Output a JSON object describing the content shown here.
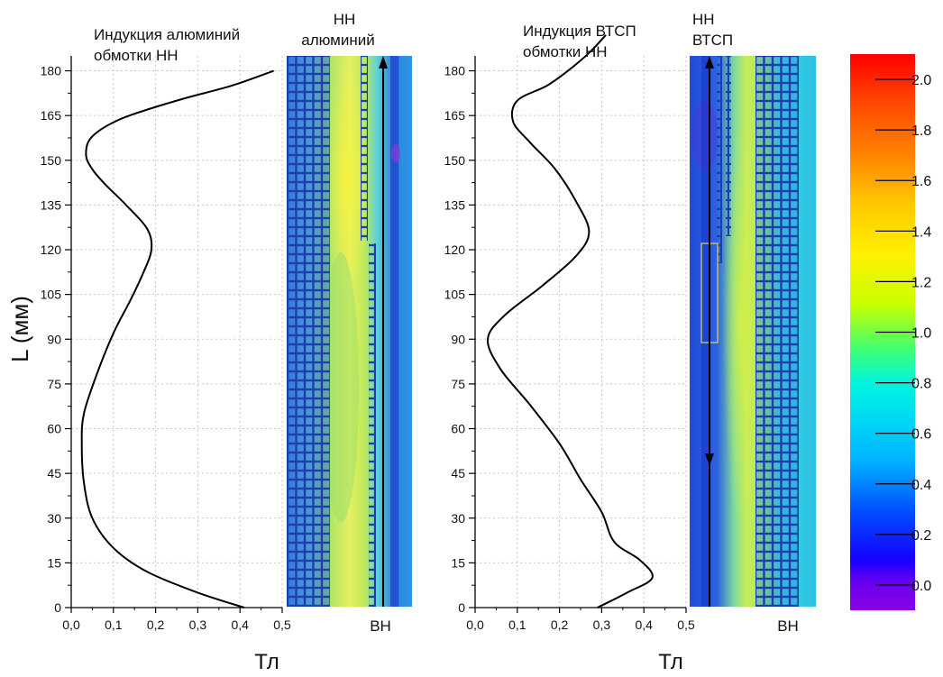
{
  "ylabel": "L (мм)",
  "colors": {
    "curve": "#000000",
    "grid": "#c8c8c8",
    "frame": "#000000"
  },
  "chart_data": [
    {
      "type": "line",
      "title": "Индукция алюминий обмотки НН",
      "title_lines": [
        "Индукция алюминий",
        "обмотки НН"
      ],
      "xlabel": "Тл",
      "ylabel": "L (мм)",
      "xlim": [
        0,
        0.5
      ],
      "ylim": [
        0,
        185
      ],
      "xticks": [
        "0,0",
        "0,1",
        "0,2",
        "0,3",
        "0,4",
        "0,5"
      ],
      "yticks": [
        "0",
        "15",
        "30",
        "45",
        "60",
        "75",
        "90",
        "105",
        "120",
        "135",
        "150",
        "165",
        "180"
      ],
      "grid": true,
      "series": [
        {
          "x": [
            0.41,
            0.3,
            0.18,
            0.1,
            0.05,
            0.03,
            0.025,
            0.03,
            0.06,
            0.1,
            0.14,
            0.17,
            0.19,
            0.18,
            0.13,
            0.08,
            0.05,
            0.035,
            0.05,
            0.12,
            0.25,
            0.38,
            0.48
          ],
          "y": [
            0,
            5,
            12,
            20,
            30,
            42,
            55,
            65,
            78,
            92,
            103,
            112,
            120,
            127,
            135,
            142,
            147,
            152,
            158,
            164,
            170,
            175,
            180
          ]
        }
      ],
      "annotations": {
        "top_panel_label_lines": [
          "НН",
          "алюминий"
        ],
        "bottom_panel_label": "ВН"
      }
    },
    {
      "type": "line",
      "title": "Индукция ВТСП обмотки НН",
      "title_lines": [
        "Индукция ВТСП",
        "обмотки НН"
      ],
      "xlabel": "Тл",
      "xlim": [
        0,
        0.5
      ],
      "ylim": [
        0,
        185
      ],
      "xticks": [
        "0,0",
        "0,1",
        "0,2",
        "0,3",
        "0,4",
        "0,5"
      ],
      "yticks": [
        "0",
        "15",
        "30",
        "45",
        "60",
        "75",
        "90",
        "105",
        "120",
        "135",
        "150",
        "165",
        "180"
      ],
      "grid": true,
      "series": [
        {
          "x": [
            0.29,
            0.36,
            0.42,
            0.39,
            0.33,
            0.3,
            0.25,
            0.2,
            0.13,
            0.06,
            0.03,
            0.07,
            0.16,
            0.24,
            0.27,
            0.24,
            0.19,
            0.13,
            0.09,
            0.1,
            0.17,
            0.22,
            0.27,
            0.31
          ],
          "y": [
            0,
            5,
            10,
            16,
            22,
            32,
            43,
            55,
            68,
            80,
            90,
            98,
            108,
            118,
            126,
            136,
            147,
            156,
            163,
            170,
            175,
            180,
            186,
            192
          ]
        }
      ],
      "annotations": {
        "top_panel_label_lines": [
          "НН",
          "ВТСП"
        ],
        "bottom_panel_label": "ВН"
      }
    },
    {
      "type": "heatmap",
      "colorbar_ticks": [
        "0.0",
        "0.2",
        "0.4",
        "0.6",
        "0.8",
        "1.0",
        "1.2",
        "1.4",
        "1.6",
        "1.8",
        "2.0"
      ],
      "colorbar_range": [
        -0.1,
        2.1
      ],
      "colormap": [
        "#8a00e6",
        "#1400ff",
        "#0050ff",
        "#00b4ff",
        "#00f0e6",
        "#40ff70",
        "#c8ff00",
        "#fff000",
        "#ffc800",
        "#ff8200",
        "#ff3200",
        "#ff0000"
      ]
    }
  ]
}
